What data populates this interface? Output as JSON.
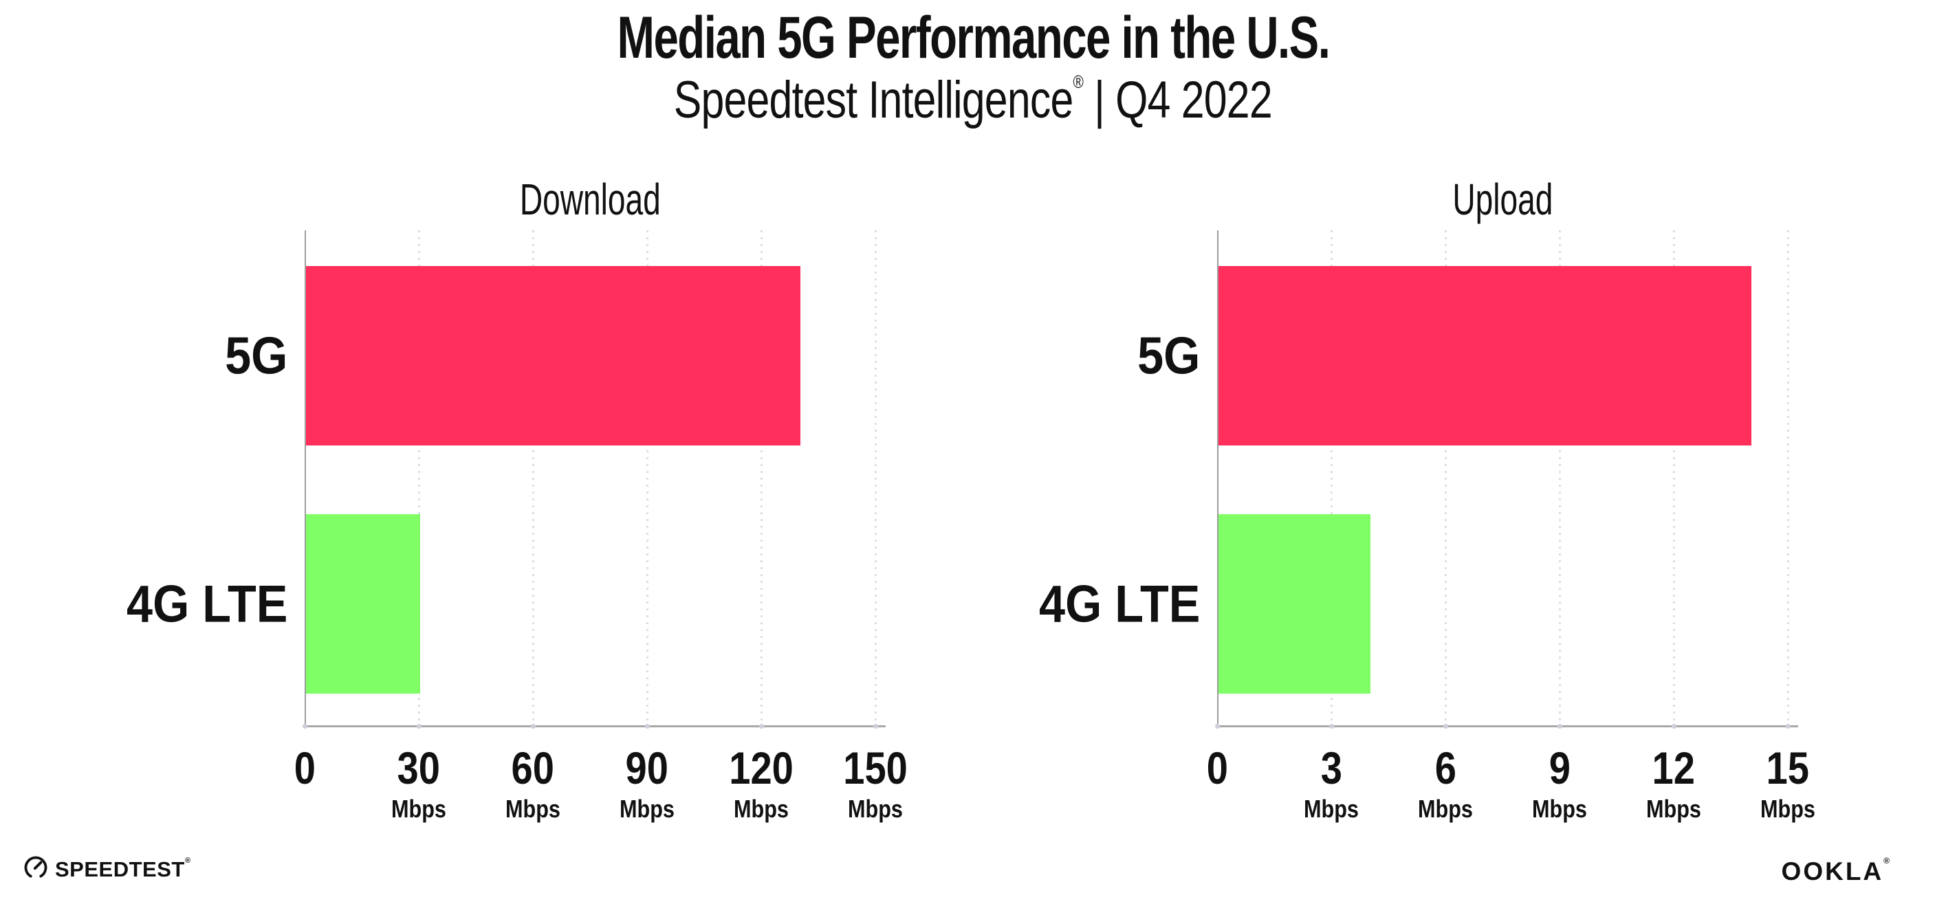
{
  "header": {
    "title": "Median 5G Performance in the U.S.",
    "subtitle_brand": "Speedtest Intelligence",
    "subtitle_reg": "®",
    "subtitle_rest": " | Q4 2022"
  },
  "chart_data": [
    {
      "type": "bar",
      "orientation": "horizontal",
      "title": "Download",
      "categories": [
        "5G",
        "4G LTE"
      ],
      "values": [
        130,
        30
      ],
      "unit": "Mbps",
      "xlabel": "",
      "ylabel": "",
      "xlim": [
        0,
        150
      ],
      "xticks": [
        0,
        30,
        60,
        90,
        120,
        150
      ],
      "bar_colors": [
        "#ff2e5a",
        "#80fe66"
      ],
      "grid": "dotted-vertical-at-ticks",
      "legend": "none"
    },
    {
      "type": "bar",
      "orientation": "horizontal",
      "title": "Upload",
      "categories": [
        "5G",
        "4G LTE"
      ],
      "values": [
        14,
        4
      ],
      "unit": "Mbps",
      "xlabel": "",
      "ylabel": "",
      "xlim": [
        0,
        15
      ],
      "xticks": [
        0,
        3,
        6,
        9,
        12,
        15
      ],
      "bar_colors": [
        "#ff2e5a",
        "#80fe66"
      ],
      "grid": "dotted-vertical-at-ticks",
      "legend": "none"
    }
  ],
  "footer": {
    "speedtest_label": "SPEEDTEST",
    "speedtest_mark": "®",
    "ookla_label": "OOKLA",
    "ookla_mark": "®"
  },
  "colors": {
    "bar_5g": "#ff2e5a",
    "bar_4g_lte": "#80fe66",
    "axis": "#9c9c9c",
    "grid_dot": "#dddde5",
    "text": "#111111",
    "background": "#ffffff"
  }
}
